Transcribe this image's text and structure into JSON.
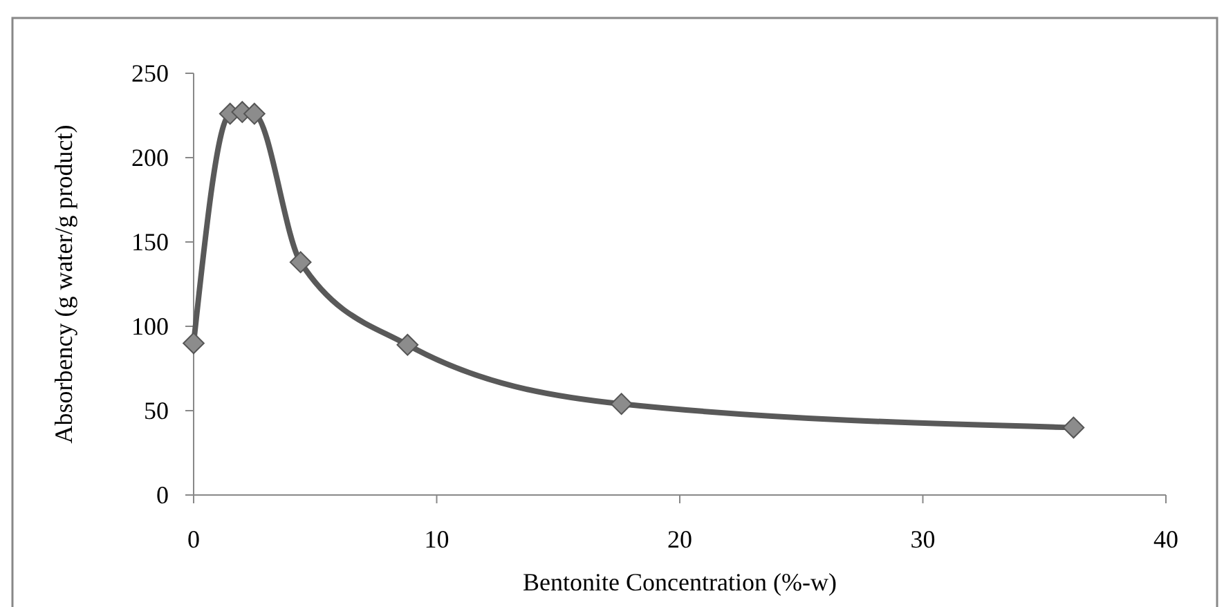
{
  "chart_data": {
    "type": "line",
    "xlabel": "Bentonite Concentration (%-w)",
    "ylabel": "Absorbency (g water/g product)",
    "x": [
      0,
      1.5,
      2,
      2.5,
      4.4,
      8.8,
      17.6,
      36.2
    ],
    "series": [
      {
        "color": "#595959",
        "values": [
          90,
          226,
          227,
          226,
          138,
          89,
          54,
          40
        ]
      }
    ],
    "xlim": [
      0,
      40
    ],
    "xticks": [
      0,
      10,
      20,
      30,
      40
    ],
    "ylim": [
      0,
      250
    ],
    "yticks": [
      0,
      50,
      100,
      150,
      200,
      250
    ],
    "marker": "diamond",
    "line_style": "solid",
    "grid": false
  }
}
